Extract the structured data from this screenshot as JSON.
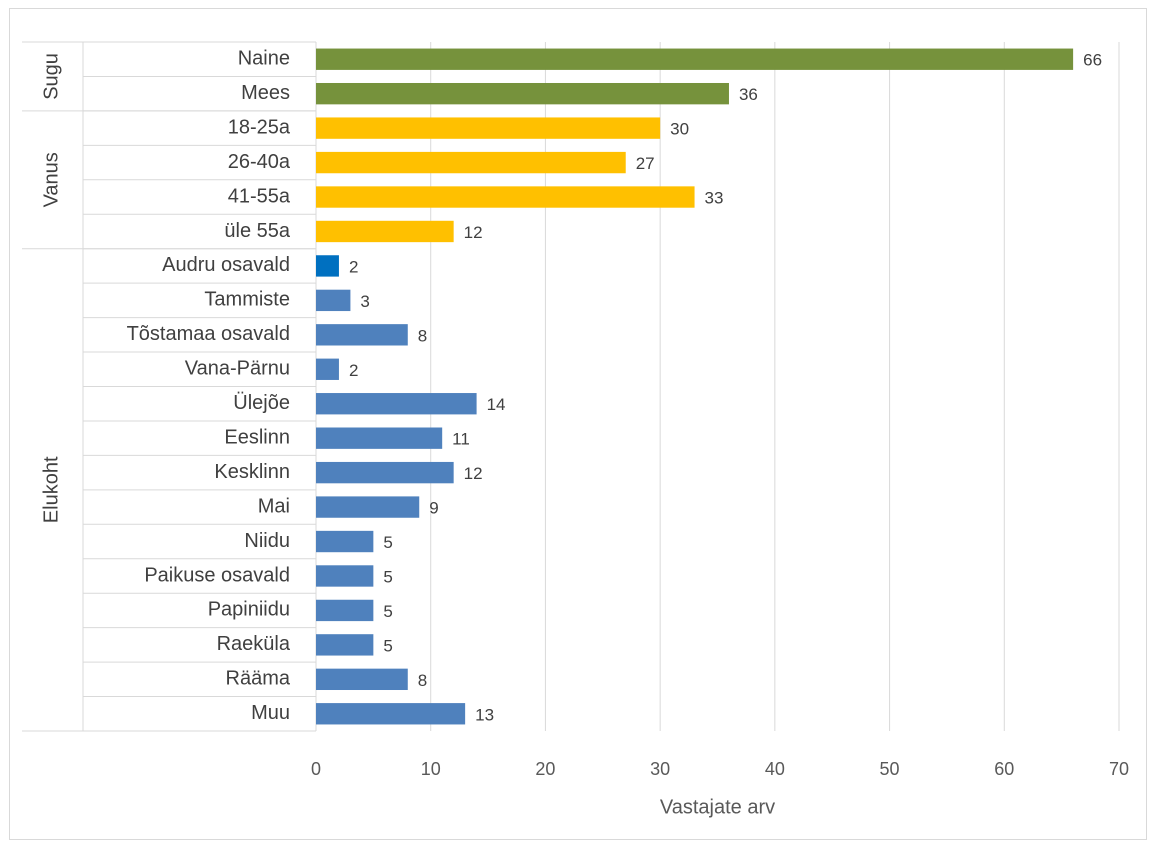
{
  "chart_data": {
    "type": "bar",
    "orientation": "horizontal",
    "xlabel": "Vastajate arv",
    "ylabel": "",
    "xlim": [
      0,
      70
    ],
    "xticks": [
      0,
      10,
      20,
      30,
      40,
      50,
      60,
      70
    ],
    "grid": true,
    "legend": "none",
    "groups": [
      {
        "name": "Sugu",
        "color": "#76923c",
        "categories": [
          "Naine",
          "Mees"
        ],
        "values": [
          66,
          36
        ]
      },
      {
        "name": "Vanus",
        "color": "#ffc000",
        "categories": [
          "18-25a",
          "26-40a",
          "41-55a",
          "üle 55a"
        ],
        "values": [
          30,
          27,
          33,
          12
        ]
      },
      {
        "name": "Elukoht",
        "color": "#4f81bd",
        "highlight_color": "#0070c0",
        "categories": [
          "Audru osavald",
          "Tammiste",
          "Tõstamaa osavald",
          "Vana-Pärnu",
          "Ülejõe",
          "Eeslinn",
          "Kesklinn",
          "Mai",
          "Niidu",
          "Paikuse osavald",
          "Papiniidu",
          "Raeküla",
          "Rääma",
          "Muu"
        ],
        "values": [
          2,
          3,
          8,
          2,
          14,
          11,
          12,
          9,
          5,
          5,
          5,
          5,
          8,
          13
        ]
      }
    ]
  }
}
